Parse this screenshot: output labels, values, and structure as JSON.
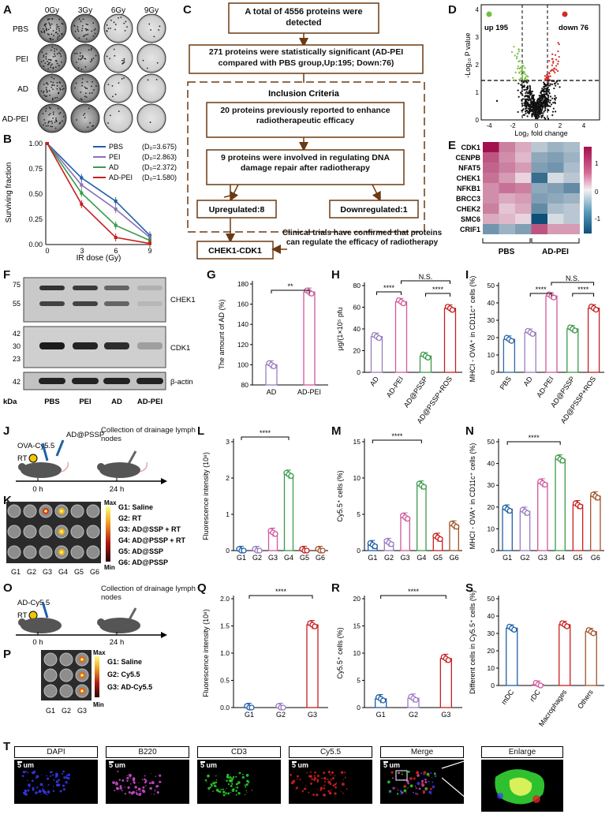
{
  "panels": [
    "A",
    "B",
    "C",
    "D",
    "E",
    "F",
    "G",
    "H",
    "I",
    "J",
    "K",
    "L",
    "M",
    "N",
    "O",
    "P",
    "Q",
    "R",
    "S",
    "T"
  ],
  "panelA": {
    "columns": [
      "0Gy",
      "3Gy",
      "6Gy",
      "9Gy"
    ],
    "rows": [
      "PBS",
      "PEI",
      "AD",
      "AD-PEI"
    ]
  },
  "panelB": {
    "ylabel": "Surviving fraction",
    "xlabel": "IR dose (Gy)",
    "xticks": [
      "0",
      "3",
      "6",
      "9"
    ],
    "yticks": [
      "0.00",
      "0.25",
      "0.50",
      "0.75",
      "1.00"
    ],
    "legend": [
      {
        "name": "PBS",
        "d0": "(D₀=3.675)",
        "color": "#1f5fa8"
      },
      {
        "name": "PEI",
        "d0": "(D₀=2.863)",
        "color": "#8c6fb5"
      },
      {
        "name": "AD",
        "d0": "(D₀=2.372)",
        "color": "#3b9a4a"
      },
      {
        "name": "AD-PEI",
        "d0": "(D₀=1.580)",
        "color": "#c81e1e"
      }
    ],
    "series": {
      "PBS": [
        1,
        0.66,
        0.43,
        0.09
      ],
      "PEI": [
        1,
        0.59,
        0.35,
        0.07
      ],
      "AD": [
        1,
        0.51,
        0.19,
        0.04
      ],
      "AD-PEI": [
        1,
        0.4,
        0.07,
        0.01
      ]
    }
  },
  "panelC": {
    "box1": "A total of 4556 proteins were detected",
    "box2": "271 proteins were statistically significant (AD-PEI compared with PBS group,Up:195; Down:76)",
    "inclusion": "Inclusion Criteria",
    "box3": "20 proteins previously reported to enhance radiotherapeutic efficacy",
    "box4": "9 proteins were involved in regulating DNA damage repair after radiotherapy",
    "up": "Upregulated:8",
    "down": "Downregulated:1",
    "result": "CHEK1-CDK1",
    "note": "Clinical trials have confirmed that proteins can regulate the efficacy of radiotherapy"
  },
  "panelD": {
    "up": "up 195",
    "down": "down 76",
    "ylabel": "-Log₁₀ P value",
    "xlabel": "Log₂ fold change",
    "xticks": [
      "-4",
      "-2",
      "0",
      "2",
      "4"
    ],
    "yticks": [
      "0",
      "1",
      "2",
      "3",
      "4"
    ]
  },
  "panelE": {
    "genes": [
      "CDK1",
      "CENPB",
      "NFAT5",
      "CHEK1",
      "NFKB1",
      "BRCC3",
      "CHEK2",
      "SMC6",
      "CRIF1"
    ],
    "groups": [
      "PBS",
      "AD-PEI"
    ],
    "scale": [
      "1",
      "0",
      "-1"
    ]
  },
  "panelF": {
    "kda": "kDa",
    "markers1": [
      "75",
      "55"
    ],
    "markers2": [
      "42",
      "30",
      "23"
    ],
    "markers3": [
      "42"
    ],
    "bands": [
      "CHEK1",
      "CDK1",
      "β-actin"
    ],
    "lanes": [
      "PBS",
      "PEI",
      "AD",
      "AD-PEI"
    ]
  },
  "panelG": {
    "ylabel": "The amount of AD (%)",
    "yticks": [
      "80",
      "100",
      "120",
      "140",
      "160",
      "180"
    ],
    "categories": [
      "AD",
      "AD-PEI"
    ],
    "values": [
      100,
      172
    ],
    "sig": "**"
  },
  "panelH": {
    "ylabel": "μg/(1×10⁵ pfu",
    "yticks": [
      "0",
      "20",
      "40",
      "60",
      "80"
    ],
    "categories": [
      "AD",
      "AD-PEI",
      "AD@PSSP",
      "AD@PSSP+ROS"
    ],
    "values": [
      33,
      65,
      15,
      59
    ],
    "sig1": "****",
    "sig2": "****",
    "ns": "N.S."
  },
  "panelI": {
    "ylabel": "MHCI - OVA⁺ in CD11c⁺ cells (%)",
    "yticks": [
      "0",
      "10",
      "20",
      "30",
      "40",
      "50"
    ],
    "categories": [
      "PBS",
      "AD",
      "AD-PEI",
      "AD@PSSP",
      "AD@PSSP+ROS"
    ],
    "values": [
      19,
      23,
      44,
      25,
      37
    ],
    "sig1": "****",
    "sig2": "****",
    "ns": "N.S."
  },
  "panelJ": {
    "label1": "OVA-Cy5.5",
    "label2": "RT",
    "label3": "AD@PSSP",
    "label4": "Collection of drainage lymph nodes",
    "t0": "0 h",
    "t1": "24 h"
  },
  "panelK": {
    "max": "Max",
    "min": "Min",
    "groups": [
      "G1: Saline",
      "G2: RT",
      "G3: AD@SSP + RT",
      "G4: AD@PSSP + RT",
      "G5: AD@SSP",
      "G6: AD@PSSP"
    ],
    "lanes": [
      "G1",
      "G2",
      "G3",
      "G4",
      "G5",
      "G6"
    ]
  },
  "panelL": {
    "ylabel": "Fluorescence intensity (10⁸)",
    "yticks": [
      "0",
      "1",
      "2",
      "3"
    ],
    "categories": [
      "G1",
      "G2",
      "G3",
      "G4",
      "G5",
      "G6"
    ],
    "values": [
      0,
      0,
      0.5,
      2.1,
      0,
      0
    ],
    "sig": "****"
  },
  "panelM": {
    "ylabel": "Cy5.5⁺ cells (%)",
    "yticks": [
      "0",
      "5",
      "10",
      "15"
    ],
    "categories": [
      "G1",
      "G2",
      "G3",
      "G4",
      "G5",
      "G6"
    ],
    "values": [
      0.8,
      1.1,
      4.6,
      9.0,
      1.8,
      3.5
    ],
    "sig": "****"
  },
  "panelN": {
    "ylabel": "MHCI - OVA⁺ in CD11c⁺ cells (%)",
    "yticks": [
      "0",
      "10",
      "20",
      "30",
      "40",
      "50"
    ],
    "categories": [
      "G1",
      "G2",
      "G3",
      "G4",
      "G5",
      "G6"
    ],
    "values": [
      19,
      18,
      31,
      42,
      21,
      25
    ],
    "sig": "****"
  },
  "panelO": {
    "label1": "AD-Cy5.5",
    "label2": "RT",
    "label3": "Collection of drainage lymph nodes",
    "t0": "0 h",
    "t1": "24 h"
  },
  "panelP": {
    "max": "Max",
    "min": "Min",
    "groups": [
      "G1: Saline",
      "G2: Cy5.5",
      "G3: AD-Cy5.5"
    ],
    "lanes": [
      "G1",
      "G2",
      "G3"
    ]
  },
  "panelQ": {
    "ylabel": "Fluorescence intensity (10⁸)",
    "yticks": [
      "0.0",
      "0.5",
      "1.0",
      "1.5",
      "2.0"
    ],
    "categories": [
      "G1",
      "G2",
      "G3"
    ],
    "values": [
      0,
      0,
      1.52
    ],
    "sig": "****"
  },
  "panelR": {
    "ylabel": "Cy5.5⁺ cells (%)",
    "yticks": [
      "0",
      "5",
      "10",
      "15",
      "20"
    ],
    "categories": [
      "G1",
      "G2",
      "G3"
    ],
    "values": [
      1.6,
      1.7,
      9.0
    ],
    "sig": "****"
  },
  "panelS": {
    "ylabel": "Different cells in Cy5.5⁺ cells (%)",
    "yticks": [
      "0",
      "10",
      "20",
      "30",
      "40",
      "50"
    ],
    "categories": [
      "mDC",
      "rDC",
      "Macrophages",
      "Others"
    ],
    "values": [
      33,
      0.6,
      35,
      31
    ]
  },
  "panelT": {
    "channels": [
      "DAPI",
      "B220",
      "CD3",
      "Cy5.5",
      "Merge",
      "Enlarge"
    ],
    "scale": "5 um"
  },
  "colors": {
    "blue": "#1f5fa8",
    "violet": "#9a7cc0",
    "pink": "#d1589b",
    "green": "#3b9a4a",
    "red": "#c81e1e",
    "brown": "#a0532a",
    "navy": "#2c6aa8"
  }
}
